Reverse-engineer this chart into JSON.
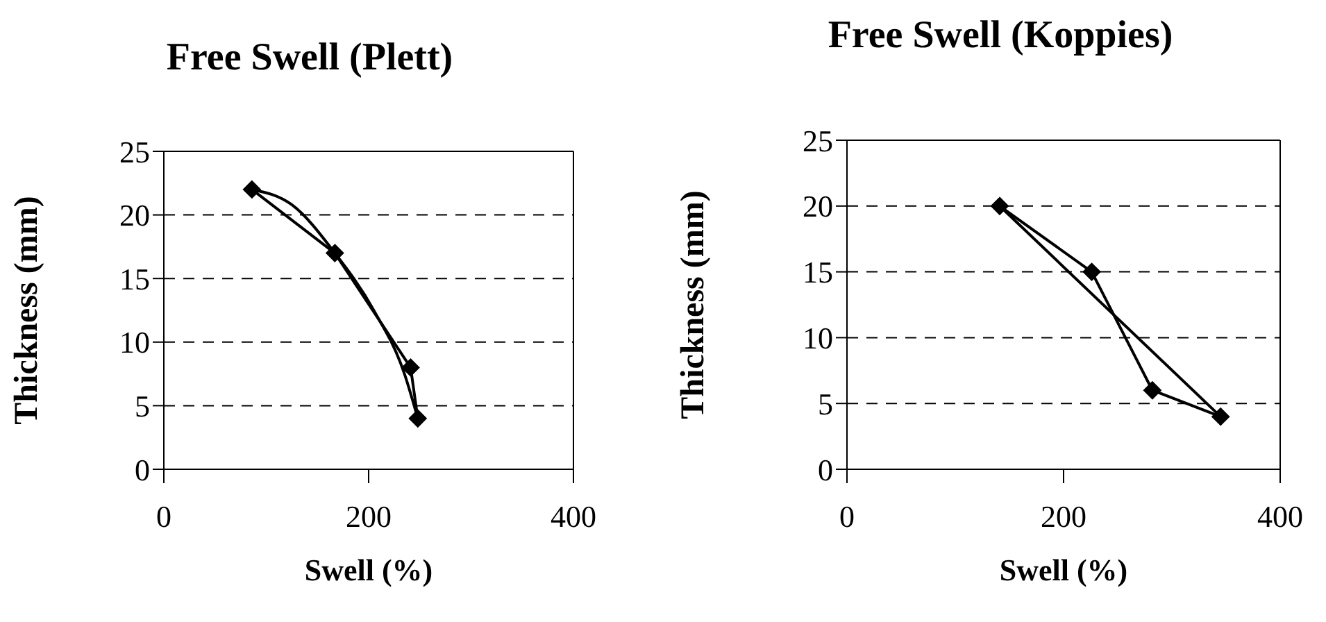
{
  "chart_data": [
    {
      "type": "line",
      "title": "Free Swell (Plett)",
      "xlabel": "Swell (%)",
      "ylabel": "Thickness (mm)",
      "xlim": [
        0,
        400
      ],
      "xticks": [
        0,
        200,
        400
      ],
      "ylim": [
        0,
        25
      ],
      "yticks": [
        0,
        5,
        10,
        15,
        20,
        25
      ],
      "grid": "y",
      "marker": "diamond",
      "series": [
        {
          "color": "#000000",
          "x": [
            86,
            167,
            241,
            248
          ],
          "values": [
            22,
            17,
            8,
            4
          ]
        },
        {
          "type": "line",
          "marker": "none",
          "color": "#000000",
          "x": [
            86,
            125,
            167,
            205,
            235,
            248
          ],
          "values": [
            22,
            20.8,
            17,
            12.5,
            7.5,
            4
          ]
        }
      ]
    },
    {
      "type": "line",
      "title": "Free Swell (Koppies)",
      "xlabel": "Swell (%)",
      "ylabel": "Thickness (mm)",
      "xlim": [
        0,
        400
      ],
      "xticks": [
        0,
        200,
        400
      ],
      "ylim": [
        0,
        25
      ],
      "yticks": [
        0,
        5,
        10,
        15,
        20,
        25
      ],
      "grid": "y",
      "marker": "diamond",
      "series": [
        {
          "color": "#000000",
          "x": [
            141,
            226,
            282,
            345
          ],
          "values": [
            20,
            15,
            6,
            4
          ]
        },
        {
          "type": "line",
          "marker": "none",
          "color": "#000000",
          "x": [
            141,
            345
          ],
          "values": [
            20,
            4
          ]
        }
      ]
    }
  ]
}
